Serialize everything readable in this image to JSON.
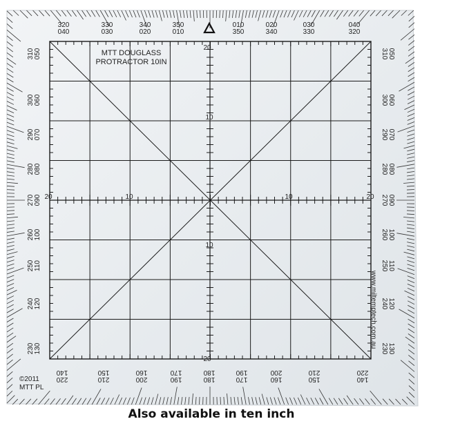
{
  "product": {
    "title_line1": "MTT DOUGLASS",
    "title_line2": "PROTRACTOR 10IN",
    "copyright_line1": "©2011",
    "copyright_line2": "MTT PL",
    "website": "www.miltemptech.com.au",
    "north_marker": "triangle-icon"
  },
  "caption": "Also available in ten inch",
  "scale": {
    "top": "20",
    "upper": "10",
    "lower": "10",
    "bottom": "20",
    "left": "20",
    "left_mid": "10",
    "right_mid": "10",
    "right": "20"
  },
  "bearings": {
    "top": [
      [
        "320",
        "040"
      ],
      [
        "330",
        "030"
      ],
      [
        "340",
        "020"
      ],
      [
        "350",
        "010"
      ],
      [
        "010",
        "350"
      ],
      [
        "020",
        "340"
      ],
      [
        "030",
        "330"
      ],
      [
        "040",
        "320"
      ]
    ],
    "left": [
      [
        "310",
        "050"
      ],
      [
        "300",
        "060"
      ],
      [
        "290",
        "070"
      ],
      [
        "280",
        "080"
      ],
      [
        "270",
        "090"
      ],
      [
        "260",
        "100"
      ],
      [
        "250",
        "110"
      ],
      [
        "240",
        "120"
      ],
      [
        "230",
        "130"
      ]
    ],
    "right": [
      [
        "050",
        "310"
      ],
      [
        "060",
        "300"
      ],
      [
        "070",
        "290"
      ],
      [
        "080",
        "280"
      ],
      [
        "090",
        "270"
      ],
      [
        "100",
        "260"
      ],
      [
        "110",
        "250"
      ],
      [
        "120",
        "240"
      ],
      [
        "130",
        "230"
      ]
    ],
    "bottom": [
      [
        "220",
        "140"
      ],
      [
        "210",
        "150"
      ],
      [
        "200",
        "160"
      ],
      [
        "190",
        "170"
      ],
      [
        "180",
        "180"
      ],
      [
        "170",
        "190"
      ],
      [
        "160",
        "200"
      ],
      [
        "150",
        "210"
      ],
      [
        "140",
        "220"
      ]
    ]
  },
  "colors": {
    "plate": "#e9edf0",
    "line": "#1a1a1a",
    "border": "#c8cdd2"
  }
}
